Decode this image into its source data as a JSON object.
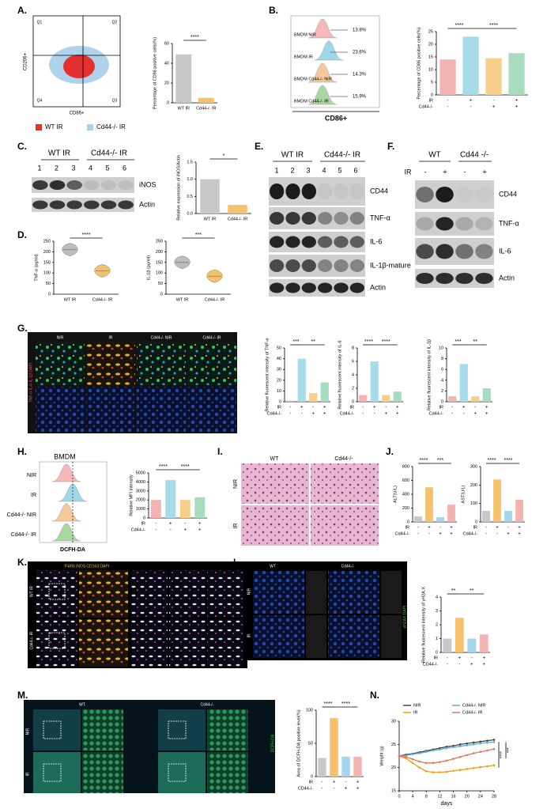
{
  "figure": {
    "panel_labels": [
      "A.",
      "B.",
      "C.",
      "D.",
      "E.",
      "F.",
      "G.",
      "H.",
      "I.",
      "J.",
      "K.",
      "L.",
      "M.",
      "N."
    ],
    "a": {
      "y_axis": "CD206+",
      "x_axis": "CD86+",
      "quadrants": [
        "Q1",
        "Q2",
        "Q3",
        "Q4"
      ],
      "legend": [
        "WT IR",
        "Cd44-/- IR"
      ]
    },
    "b": {
      "rows": [
        {
          "name": "BMDM NIR",
          "percent": "13.8%"
        },
        {
          "name": "BMDM IR",
          "percent": "23.6%"
        },
        {
          "name": "BMDM Cd44-/- NIR",
          "percent": "14.3%"
        },
        {
          "name": "BMDM Cd44-/- IR",
          "percent": "15.9%"
        }
      ],
      "x_axis": "CD86+"
    },
    "c": {
      "groups": [
        "WT IR",
        "Cd44-/- IR"
      ],
      "lanes": [
        "1",
        "2",
        "3",
        "4",
        "5",
        "6"
      ],
      "bands": [
        "iNOS",
        "Actin"
      ]
    },
    "e": {
      "groups": [
        "WT IR",
        "Cd44-/- IR"
      ],
      "lanes": [
        "1",
        "2",
        "3",
        "4",
        "5",
        "6"
      ],
      "bands": [
        "CD44",
        "TNF-α",
        "IL-6",
        "IL-1β-mature",
        "Actin"
      ]
    },
    "f": {
      "groups": [
        "WT",
        "Cd44 -/-"
      ],
      "row_label": "IR",
      "signs": [
        "-",
        "+",
        "-",
        "+"
      ],
      "bands": [
        "CD44",
        "TNF-α",
        "IL-6",
        "Actin"
      ]
    },
    "g": {
      "columns": [
        "NIR",
        "IR",
        "Cd44-/- NIR",
        "Cd44-/- IR"
      ],
      "stain": "TNF-α IL-6 IL-1β DAPI"
    },
    "h": {
      "title": "BMDM",
      "rows": [
        "NIR",
        "IR",
        "Cd44-/- NIR",
        "Cd44-/- IR"
      ],
      "x_axis": "DCFH-DA"
    },
    "i": {
      "columns": [
        "WT",
        "Cd44-/-"
      ],
      "rows": [
        "NIR",
        "IR"
      ]
    },
    "k": {
      "stain": "F4/80 iNOS CD163 DAPI",
      "rows": [
        "WT IR",
        "Cd44-/- IR"
      ]
    },
    "l": {
      "columns": [
        "WT",
        "Cd44-/-"
      ],
      "rows": [
        "NIR",
        "IR"
      ],
      "stain": "γH2AX DAPI"
    },
    "m": {
      "columns": [
        "WT",
        "Cd44-/-"
      ],
      "rows": [
        "NIR",
        "IR"
      ],
      "stain": "DCFH-DA"
    }
  },
  "chart_data": [
    {
      "type": "bar",
      "ylabel": "Percentage of CD86 positive cells(%)",
      "categories": [
        "WT IR",
        "Cd44-/- IR"
      ],
      "values": [
        49,
        5
      ],
      "colors": [
        "#c8c8c8",
        "#f5c26b"
      ],
      "ylim": [
        0,
        60
      ],
      "yticks": [
        0,
        20,
        40,
        60
      ],
      "significance": [
        "****"
      ]
    },
    {
      "type": "bar",
      "ylabel": "Percentage of CD86 positive cells(%)",
      "categories": [
        null,
        null,
        null,
        null
      ],
      "values": [
        14,
        23,
        14.5,
        16.5
      ],
      "colors": [
        "#f4b3b3",
        "#a6dcea",
        "#f7cf8a",
        "#a7dcbf"
      ],
      "ylim": [
        0,
        25
      ],
      "yticks": [
        0,
        5,
        10,
        15,
        20,
        25
      ],
      "conditions": [
        {
          "label": "IR",
          "signs": [
            "-",
            "+",
            "-",
            "+"
          ]
        },
        {
          "label": "Cd44-/-",
          "signs": [
            "-",
            "-",
            "+",
            "+"
          ]
        }
      ],
      "significance": [
        "****",
        "****"
      ]
    },
    {
      "type": "bar",
      "ylabel": "Relative expression of iNOS/Actin",
      "categories": [
        "WT IR",
        "Cd44-/- IR"
      ],
      "values": [
        1.0,
        0.25
      ],
      "colors": [
        "#c8c8c8",
        "#f5c26b"
      ],
      "ylim": [
        0,
        1.5
      ],
      "yticks": [
        {
          "value": 0,
          "label": "0.0"
        },
        0.5,
        {
          "value": 1,
          "label": "1.0"
        },
        1.5
      ],
      "significance": [
        "*"
      ]
    },
    {
      "type": "violin",
      "ylabel": "TNF-α (pg/ml)",
      "categories": [
        "WT IR",
        "Cd44-/- IR"
      ],
      "values": [
        210,
        110
      ],
      "colors": [
        "#bdbdbd",
        "#f5c26b"
      ],
      "ylim": [
        0,
        250
      ],
      "yticks": [
        0,
        50,
        100,
        150,
        200,
        250
      ],
      "significance": [
        "****"
      ]
    },
    {
      "type": "violin",
      "ylabel": "IL-1β (pg/ml)",
      "categories": [
        "WT IR",
        "Cd44-/- IR"
      ],
      "values": [
        150,
        85
      ],
      "colors": [
        "#bdbdbd",
        "#f5c26b"
      ],
      "ylim": [
        0,
        250
      ],
      "yticks": [
        0,
        50,
        100,
        150,
        200,
        250
      ],
      "significance": [
        "***"
      ]
    },
    {
      "type": "bar",
      "ylabel": "Relative fluorescent intensity of TNF-α",
      "categories": [
        null,
        null,
        null,
        null
      ],
      "values": [
        1,
        40,
        8,
        18
      ],
      "colors": [
        "#f4b3b3",
        "#a6dcea",
        "#f7cf8a",
        "#a7dcbf"
      ],
      "ylim": [
        0,
        50
      ],
      "yticks": [
        0,
        10,
        20,
        30,
        40,
        50
      ],
      "conditions": [
        {
          "label": "IR",
          "signs": [
            "-",
            "+",
            "-",
            "+"
          ]
        },
        {
          "label": "Cd44-/-",
          "signs": [
            "-",
            "-",
            "+",
            "+"
          ]
        }
      ],
      "significance": [
        "***",
        "**"
      ]
    },
    {
      "type": "bar",
      "ylabel": "Relative fluorescent intensity of IL-6",
      "categories": [
        null,
        null,
        null,
        null
      ],
      "values": [
        1,
        6,
        1,
        1.5
      ],
      "colors": [
        "#f4b3b3",
        "#a6dcea",
        "#f7cf8a",
        "#a7dcbf"
      ],
      "ylim": [
        0,
        8
      ],
      "yticks": [
        0,
        2,
        4,
        6,
        8
      ],
      "conditions": [
        {
          "label": "IR",
          "signs": [
            "-",
            "+",
            "-",
            "+"
          ]
        },
        {
          "label": "Cd44-/-",
          "signs": [
            "-",
            "-",
            "+",
            "+"
          ]
        }
      ],
      "significance": [
        "****",
        "****"
      ]
    },
    {
      "type": "bar",
      "ylabel": "Relative fluorescent intensity of IL-1β",
      "categories": [
        null,
        null,
        null,
        null
      ],
      "values": [
        1,
        7,
        1,
        2.5
      ],
      "colors": [
        "#f4b3b3",
        "#a6dcea",
        "#f7cf8a",
        "#a7dcbf"
      ],
      "ylim": [
        0,
        10
      ],
      "yticks": [
        0,
        2,
        4,
        6,
        8,
        10
      ],
      "conditions": [
        {
          "label": "IR",
          "signs": [
            "-",
            "+",
            "-",
            "+"
          ]
        },
        {
          "label": "Cd44-/-",
          "signs": [
            "-",
            "-",
            "+",
            "+"
          ]
        }
      ],
      "significance": [
        "***",
        "**"
      ]
    },
    {
      "type": "bar",
      "ylabel": "Relative MFI intensity",
      "categories": [
        null,
        null,
        null,
        null
      ],
      "values": [
        2000,
        4200,
        2000,
        2300
      ],
      "colors": [
        "#f4b3b3",
        "#a6dcea",
        "#f7cf8a",
        "#a7dcbf"
      ],
      "ylim": [
        0,
        5000
      ],
      "yticks": [
        0,
        1000,
        2000,
        3000,
        4000,
        5000
      ],
      "conditions": [
        {
          "label": "IR",
          "signs": [
            "-",
            "+",
            "-",
            "+"
          ]
        },
        {
          "label": "Cd44-/-",
          "signs": [
            "-",
            "-",
            "+",
            "+"
          ]
        }
      ],
      "significance": [
        "****",
        "****"
      ]
    },
    {
      "type": "bar",
      "ylabel": "ALT(U/L)",
      "categories": [
        null,
        null,
        null,
        null
      ],
      "values": [
        80,
        500,
        70,
        250
      ],
      "colors": [
        "#c8c8c8",
        "#f5c26b",
        "#a6d4ee",
        "#f4b3b3"
      ],
      "ylim": [
        0,
        800
      ],
      "yticks": [
        0,
        200,
        400,
        600,
        800
      ],
      "conditions": [
        {
          "label": "IR",
          "signs": [
            "-",
            "+",
            "-",
            "+"
          ]
        },
        {
          "label": "Cd44-/-",
          "signs": [
            "-",
            "-",
            "+",
            "+"
          ]
        }
      ],
      "significance": [
        "****",
        "***"
      ]
    },
    {
      "type": "bar",
      "ylabel": "AST(U/L)",
      "categories": [
        null,
        null,
        null,
        null
      ],
      "values": [
        60,
        230,
        60,
        120
      ],
      "colors": [
        "#c8c8c8",
        "#f5c26b",
        "#a6d4ee",
        "#f4b3b3"
      ],
      "ylim": [
        0,
        300
      ],
      "yticks": [
        0,
        100,
        200,
        300
      ],
      "conditions": [
        {
          "label": "IR",
          "signs": [
            "-",
            "+",
            "-",
            "+"
          ]
        },
        {
          "label": "Cd44-/-",
          "signs": [
            "-",
            "-",
            "+",
            "+"
          ]
        }
      ],
      "significance": [
        "****",
        "****"
      ]
    },
    {
      "type": "bar",
      "ylabel": "Relative fluorescent intensity of γH2A.X",
      "categories": [
        null,
        null,
        null,
        null
      ],
      "values": [
        1,
        2.5,
        1,
        1.3
      ],
      "colors": [
        "#c8c8c8",
        "#f5c26b",
        "#a6d4ee",
        "#f4b3b3"
      ],
      "ylim": [
        0,
        4
      ],
      "yticks": [
        0,
        1,
        2,
        3,
        4
      ],
      "conditions": [
        {
          "label": "IR",
          "signs": [
            "-",
            "+",
            "-",
            "+"
          ]
        },
        {
          "label": "CD44-/-",
          "signs": [
            "-",
            "-",
            "+",
            "+"
          ]
        }
      ],
      "significance": [
        "**",
        "**"
      ]
    },
    {
      "type": "bar",
      "ylabel": "Area of DCFH-DA positive level(%)",
      "categories": [
        null,
        null,
        null,
        null
      ],
      "values": [
        28,
        88,
        30,
        30
      ],
      "colors": [
        "#c8c8c8",
        "#f5c26b",
        "#a6d4ee",
        "#f4b3b3"
      ],
      "ylim": [
        0,
        100
      ],
      "yticks": [
        0,
        50,
        100
      ],
      "conditions": [
        {
          "label": "IR",
          "signs": [
            "-",
            "+",
            "-",
            "+"
          ]
        },
        {
          "label": "CD44-/-",
          "signs": [
            "-",
            "-",
            "+",
            "+"
          ]
        }
      ],
      "significance": [
        "****",
        "****"
      ]
    },
    {
      "type": "line",
      "ylabel": "Weight (g)",
      "xlabel": "days",
      "x": [
        0,
        2,
        4,
        6,
        8,
        10,
        12,
        14,
        16,
        18,
        20,
        22,
        24,
        26,
        28
      ],
      "series": [
        {
          "name": "NIR",
          "color": "#444444",
          "values": [
            22.5,
            22.8,
            23,
            23.3,
            23.6,
            23.9,
            24.2,
            24.5,
            24.7,
            25,
            25.2,
            25.4,
            25.6,
            25.8,
            26
          ]
        },
        {
          "name": "Cd44-/- NIR",
          "color": "#5dade2",
          "values": [
            22.5,
            22.6,
            22.9,
            23.1,
            23.4,
            23.7,
            23.9,
            24.2,
            24.4,
            24.6,
            24.8,
            25,
            25.2,
            25.4,
            25.5
          ]
        },
        {
          "name": "IR",
          "color": "#f39c12",
          "values": [
            22.5,
            22,
            21,
            20,
            19.2,
            19,
            19,
            19.1,
            19.3,
            19.5,
            19.7,
            19.9,
            20.1,
            20.3,
            20.5
          ]
        },
        {
          "name": "Cd44-/- IR",
          "color": "#e8735a",
          "values": [
            22.5,
            22.3,
            21.8,
            21.3,
            21,
            21,
            21.2,
            21.5,
            21.9,
            22.3,
            22.7,
            23.1,
            23.4,
            23.7,
            24
          ]
        }
      ],
      "xlim": [
        0,
        28
      ],
      "xticks": [
        0,
        4,
        8,
        12,
        16,
        20,
        24,
        28
      ],
      "ylim": [
        15,
        30
      ],
      "yticks": [
        15,
        20,
        25,
        30
      ],
      "significance": [
        "****",
        "***"
      ]
    }
  ]
}
